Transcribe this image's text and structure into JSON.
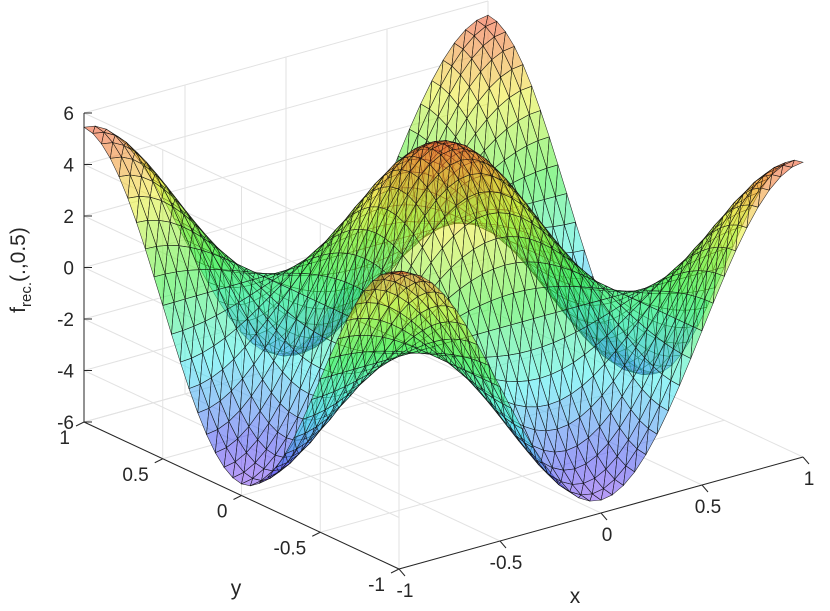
{
  "chart_data": {
    "type": "surface",
    "title": "",
    "xlabel": "x",
    "ylabel": "y",
    "zlabel": {
      "main": "f",
      "sub": "rec.",
      "suffix": "(.,0.5)"
    },
    "xlim": [
      -1,
      1
    ],
    "ylim": [
      -1,
      1
    ],
    "zlim": [
      -6,
      6
    ],
    "xticks": [
      -1,
      -0.5,
      0,
      0.5,
      1
    ],
    "yticks": [
      -1,
      -0.5,
      0,
      0.5,
      1
    ],
    "zticks": [
      -6,
      -4,
      -2,
      0,
      2,
      4,
      6
    ],
    "xtick_labels": [
      "-1",
      "-0.5",
      "0",
      "0.5",
      "1"
    ],
    "ytick_labels": [
      "-1",
      "-0.5",
      "0",
      "0.5",
      "1"
    ],
    "ztick_labels": [
      "-6",
      "-4",
      "-2",
      "0",
      "2",
      "4",
      "6"
    ],
    "grid": true,
    "mesh": "triangulated",
    "colormap": "hsv-like, semi-transparent",
    "function_samples": [
      {
        "x": 0,
        "y": 0,
        "z": 5.5
      },
      {
        "x": 0,
        "y": 1,
        "z": -0.1
      },
      {
        "x": 1,
        "y": 0,
        "z": -1.3
      },
      {
        "x": 0.5,
        "y": 0.5,
        "z": 1.5
      },
      {
        "x": -0.5,
        "y": -0.5,
        "z": 1.0
      },
      {
        "x": -0.5,
        "y": 0.5,
        "z": -5.5
      },
      {
        "x": 0.5,
        "y": -0.5,
        "z": -5.5
      }
    ]
  }
}
